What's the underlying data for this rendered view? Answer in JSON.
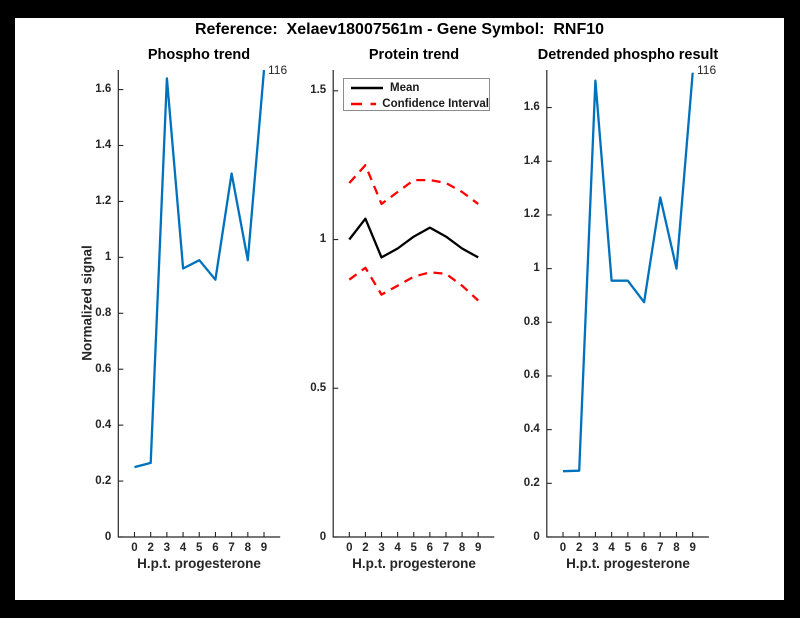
{
  "header": {
    "title": "Reference:  Xelaev18007561m - Gene Symbol:  RNF10"
  },
  "figure": {
    "background_color": "#000000",
    "panel_color": "#ffffff",
    "axis_color": "#262626",
    "blue_line_color": "#0072BD",
    "mean_line_color": "#000000",
    "ci_line_color": "#ff0000"
  },
  "chart_data": [
    {
      "type": "line",
      "title": "Phospho trend",
      "xlabel": "H.p.t. progesterone",
      "ylabel": "Normalized signal",
      "x_tick_labels": [
        "0",
        "2",
        "3",
        "4",
        "5",
        "6",
        "7",
        "8",
        "9"
      ],
      "y_ticks": [
        0,
        0.2,
        0.4,
        0.6,
        0.8,
        1,
        1.2,
        1.4,
        1.6
      ],
      "ylim": [
        0,
        1.67
      ],
      "grid": false,
      "annotation": {
        "text": "116"
      },
      "series": [
        {
          "name": "phospho-signal",
          "color": "#0072BD",
          "style": "solid",
          "values": [
            0.25,
            0.265,
            1.64,
            0.96,
            0.99,
            0.92,
            1.3,
            0.99,
            1.67
          ]
        }
      ]
    },
    {
      "type": "line",
      "title": "Protein trend",
      "xlabel": "H.p.t. progesterone",
      "ylabel": "",
      "x_tick_labels": [
        "0",
        "2",
        "3",
        "4",
        "5",
        "6",
        "7",
        "8",
        "9"
      ],
      "y_ticks": [
        0,
        0.5,
        1,
        1.5
      ],
      "ylim": [
        0,
        1.57
      ],
      "grid": false,
      "legend": {
        "position": "northeast",
        "entries": [
          {
            "label": "Mean",
            "color": "#000000",
            "style": "solid"
          },
          {
            "label": "Confidence Interval",
            "color": "#ff0000",
            "style": "dashed"
          }
        ]
      },
      "series": [
        {
          "name": "protein-mean",
          "color": "#000000",
          "style": "solid",
          "values": [
            1.0,
            1.07,
            0.94,
            0.97,
            1.01,
            1.04,
            1.01,
            0.97,
            0.94
          ]
        },
        {
          "name": "ci-upper",
          "color": "#ff0000",
          "style": "dashed",
          "values": [
            1.19,
            1.25,
            1.12,
            1.16,
            1.2,
            1.2,
            1.19,
            1.16,
            1.12
          ]
        },
        {
          "name": "ci-lower",
          "color": "#ff0000",
          "style": "dashed",
          "values": [
            0.865,
            0.905,
            0.815,
            0.845,
            0.875,
            0.89,
            0.885,
            0.845,
            0.795
          ]
        }
      ]
    },
    {
      "type": "line",
      "title": "Detrended phospho result",
      "xlabel": "H.p.t. progesterone",
      "ylabel": "",
      "x_tick_labels": [
        "0",
        "2",
        "3",
        "4",
        "5",
        "6",
        "7",
        "8",
        "9"
      ],
      "y_ticks": [
        0,
        0.2,
        0.4,
        0.6,
        0.8,
        1,
        1.2,
        1.4,
        1.6
      ],
      "ylim": [
        0,
        1.74
      ],
      "grid": false,
      "annotation": {
        "text": "116"
      },
      "series": [
        {
          "name": "detrended-signal",
          "color": "#0072BD",
          "style": "solid",
          "values": [
            0.245,
            0.247,
            1.7,
            0.955,
            0.955,
            0.875,
            1.265,
            1.0,
            1.73
          ]
        }
      ]
    }
  ]
}
